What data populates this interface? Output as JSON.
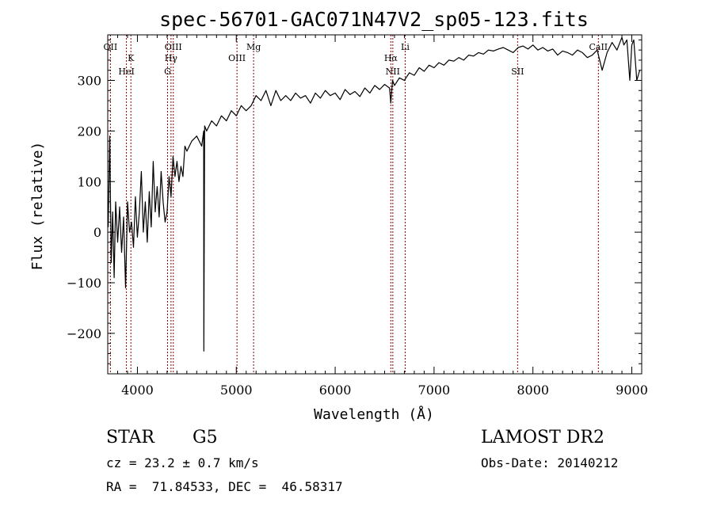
{
  "chart_data": {
    "type": "line",
    "title": "spec-56701-GAC071N47V2_sp05-123.fits",
    "xlabel": "Wavelength (Å)",
    "ylabel": "Flux (relative)",
    "xlim": [
      3700,
      9100
    ],
    "ylim": [
      -280,
      390
    ],
    "x_ticks": [
      4000,
      5000,
      6000,
      7000,
      8000,
      9000
    ],
    "y_ticks": [
      -200,
      -100,
      0,
      100,
      200,
      300
    ],
    "grid": false,
    "series": [
      {
        "name": "flux",
        "x": [
          3705,
          3720,
          3735,
          3750,
          3765,
          3780,
          3800,
          3820,
          3840,
          3860,
          3880,
          3900,
          3920,
          3940,
          3960,
          3980,
          4000,
          4020,
          4040,
          4060,
          4080,
          4100,
          4120,
          4140,
          4160,
          4180,
          4200,
          4220,
          4240,
          4260,
          4280,
          4300,
          4320,
          4340,
          4360,
          4380,
          4400,
          4420,
          4440,
          4460,
          4480,
          4500,
          4550,
          4600,
          4650,
          4670,
          4672,
          4680,
          4700,
          4750,
          4800,
          4850,
          4900,
          4950,
          5000,
          5050,
          5100,
          5150,
          5200,
          5250,
          5300,
          5350,
          5400,
          5450,
          5500,
          5550,
          5600,
          5650,
          5700,
          5750,
          5800,
          5850,
          5900,
          5950,
          6000,
          6050,
          6100,
          6150,
          6200,
          6250,
          6300,
          6350,
          6400,
          6450,
          6500,
          6550,
          6563,
          6580,
          6600,
          6650,
          6700,
          6750,
          6800,
          6850,
          6900,
          6950,
          7000,
          7050,
          7100,
          7150,
          7200,
          7250,
          7300,
          7350,
          7400,
          7450,
          7500,
          7550,
          7600,
          7650,
          7700,
          7750,
          7800,
          7850,
          7900,
          7950,
          8000,
          8050,
          8100,
          8150,
          8200,
          8250,
          8300,
          8350,
          8400,
          8450,
          8500,
          8550,
          8600,
          8650,
          8700,
          8750,
          8800,
          8850,
          8900,
          8920,
          8950,
          8980,
          9000,
          9020,
          9050,
          9080
        ],
        "values": [
          10,
          190,
          -60,
          40,
          -90,
          60,
          -20,
          50,
          -40,
          30,
          -110,
          60,
          0,
          20,
          -30,
          70,
          -10,
          40,
          120,
          0,
          60,
          -20,
          80,
          10,
          140,
          40,
          90,
          30,
          120,
          60,
          20,
          40,
          110,
          70,
          150,
          110,
          140,
          100,
          130,
          110,
          170,
          160,
          180,
          190,
          170,
          200,
          -235,
          210,
          200,
          220,
          210,
          230,
          220,
          240,
          230,
          250,
          240,
          250,
          270,
          260,
          280,
          250,
          280,
          260,
          270,
          260,
          275,
          265,
          270,
          255,
          275,
          265,
          280,
          270,
          275,
          262,
          282,
          272,
          278,
          268,
          285,
          275,
          290,
          282,
          292,
          285,
          255,
          300,
          290,
          305,
          300,
          315,
          310,
          325,
          318,
          330,
          325,
          335,
          330,
          340,
          338,
          345,
          340,
          350,
          348,
          355,
          352,
          360,
          358,
          362,
          365,
          360,
          355,
          365,
          368,
          362,
          370,
          360,
          365,
          358,
          362,
          350,
          358,
          355,
          350,
          360,
          355,
          345,
          350,
          360,
          320,
          355,
          375,
          360,
          385,
          370,
          380,
          300,
          370,
          380,
          300,
          320
        ]
      }
    ],
    "lines": [
      {
        "name": "OII",
        "wavelength": 3727
      },
      {
        "name": "K",
        "wavelength": 3934
      },
      {
        "name": "HeI",
        "wavelength": 3889
      },
      {
        "name": "OIII",
        "wavelength": 4363
      },
      {
        "name": "Hγ",
        "wavelength": 4340
      },
      {
        "name": "G",
        "wavelength": 4305
      },
      {
        "name": "Mg",
        "wavelength": 5175
      },
      {
        "name": "OIII",
        "wavelength": 5007
      },
      {
        "name": "NII",
        "wavelength": 6583
      },
      {
        "name": "Li",
        "wavelength": 6708
      },
      {
        "name": "Hα",
        "wavelength": 6563
      },
      {
        "name": "SII",
        "wavelength": 7845
      },
      {
        "name": "CaII",
        "wavelength": 8662
      }
    ],
    "line_color": "#8b0000"
  },
  "info": {
    "class_label": "STAR",
    "subclass_label": "G5",
    "survey": "LAMOST DR2",
    "cz_text": "cz = 23.2 ± 0.7 km/s",
    "obs_date": "Obs-Date: 20140212",
    "radec": "RA =  71.84533, DEC =  46.58317"
  }
}
